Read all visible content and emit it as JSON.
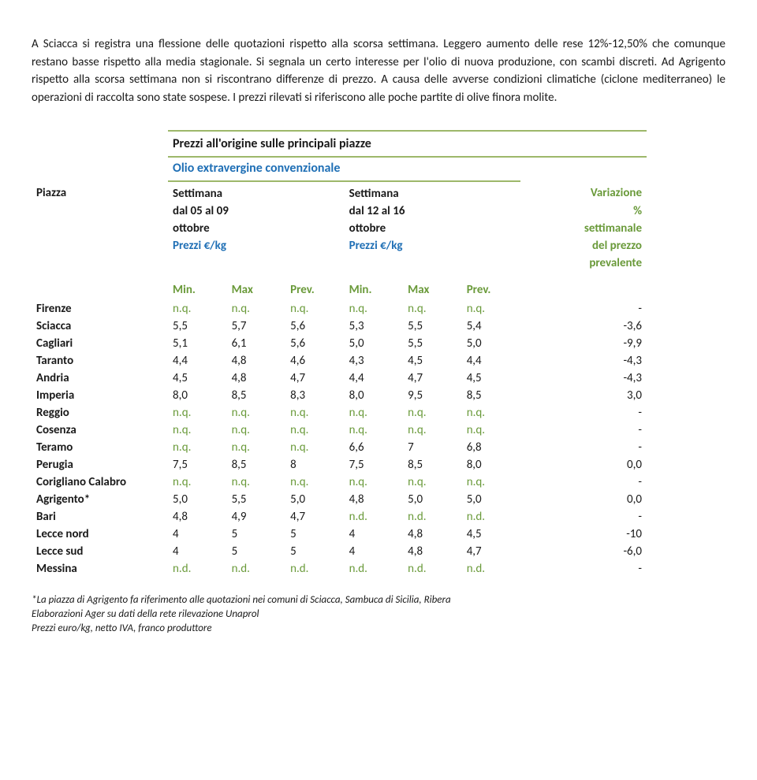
{
  "colors": {
    "text": "#1a1a1a",
    "blue": "#1f6fb5",
    "green": "#6a9a3a",
    "border": "#9db86a"
  },
  "intro": "A Sciacca si registra una flessione delle quotazioni rispetto alla scorsa settimana. Leggero aumento delle rese 12%-12,50% che comunque restano basse rispetto alla media stagionale. Si segnala un certo interesse per l'olio di nuova produzione, con scambi discreti. Ad Agrigento rispetto alla scorsa settimana non si riscontrano differenze di prezzo. A causa delle avverse condizioni climatiche (ciclone mediterraneo) le operazioni di raccolta sono state sospese. I prezzi rilevati si riferiscono alle poche partite di olive finora molite.",
  "table": {
    "title": "Prezzi all'origine sulle principali piazze",
    "subtitle": "Olio extravergine convenzionale",
    "col_piazza": "Piazza",
    "week1_l1": "Settimana",
    "week1_l2": "dal 05 al 09",
    "week1_l3": "ottobre",
    "week1_l4": "Prezzi €/kg",
    "week2_l1": "Settimana",
    "week2_l2": "dal 12 al 16",
    "week2_l3": "ottobre",
    "week2_l4": "Prezzi €/kg",
    "var_l1": "Variazione",
    "var_l2": "%",
    "var_l3": "settimanale",
    "var_l4": "del prezzo",
    "var_l5": "prevalente",
    "mm": {
      "min": "Min.",
      "max": "Max",
      "prev": "Prev."
    },
    "rows": [
      {
        "p": "Firenze",
        "a": [
          "n.q.",
          "n.q.",
          "n.q.",
          "n.q.",
          "n.q.",
          "n.q."
        ],
        "v": "-"
      },
      {
        "p": "Sciacca",
        "a": [
          "5,5",
          "5,7",
          "5,6",
          "5,3",
          "5,5",
          "5,4"
        ],
        "v": "-3,6"
      },
      {
        "p": "Cagliari",
        "a": [
          "5,1",
          "6,1",
          "5,6",
          "5,0",
          "5,5",
          "5,0"
        ],
        "v": "-9,9"
      },
      {
        "p": "Taranto",
        "a": [
          "4,4",
          "4,8",
          "4,6",
          "4,3",
          "4,5",
          "4,4"
        ],
        "v": "-4,3"
      },
      {
        "p": "Andria",
        "a": [
          "4,5",
          "4,8",
          "4,7",
          "4,4",
          "4,7",
          "4,5"
        ],
        "v": "-4,3"
      },
      {
        "p": "Imperia",
        "a": [
          "8,0",
          "8,5",
          "8,3",
          "8,0",
          "9,5",
          "8,5"
        ],
        "v": "3,0"
      },
      {
        "p": "Reggio",
        "a": [
          "n.q.",
          "n.q.",
          "n.q.",
          "n.q.",
          "n.q.",
          "n.q."
        ],
        "v": "-"
      },
      {
        "p": "Cosenza",
        "a": [
          "n.q.",
          "n.q.",
          "n.q.",
          "n.q.",
          "n.q.",
          "n.q."
        ],
        "v": "-"
      },
      {
        "p": "Teramo",
        "a": [
          "n.q.",
          "n.q.",
          "n.q.",
          "6,6",
          "7",
          "6,8"
        ],
        "v": "-"
      },
      {
        "p": "Perugia",
        "a": [
          "7,5",
          "8,5",
          "8",
          "7,5",
          "8,5",
          "8,0"
        ],
        "v": "0,0"
      },
      {
        "p": "Corigliano Calabro",
        "a": [
          "n.q.",
          "n.q.",
          "n.q.",
          "n.q.",
          "n.q.",
          "n.q."
        ],
        "v": "-"
      },
      {
        "p": "Agrigento*",
        "a": [
          "5,0",
          "5,5",
          "5,0",
          "4,8",
          "5,0",
          "5,0"
        ],
        "v": "0,0"
      },
      {
        "p": "Bari",
        "a": [
          "4,8",
          "4,9",
          "4,7",
          "n.d.",
          "n.d.",
          "n.d."
        ],
        "v": "-"
      },
      {
        "p": "Lecce nord",
        "a": [
          "4",
          "5",
          "5",
          "4",
          "4,8",
          "4,5"
        ],
        "v": "-10"
      },
      {
        "p": "Lecce sud",
        "a": [
          "4",
          "5",
          "5",
          "4",
          "4,8",
          "4,7"
        ],
        "v": "-6,0"
      },
      {
        "p": "Messina",
        "a": [
          "n.d.",
          "n.d.",
          "n.d.",
          "n.d.",
          "n.d.",
          "n.d."
        ],
        "v": "-"
      }
    ]
  },
  "footnotes": {
    "f1": "*La piazza di Agrigento fa riferimento alle quotazioni nei comuni di Sciacca, Sambuca di Sicilia, Ribera",
    "f2": "Elaborazioni Ager su dati della rete rilevazione Unaprol",
    "f3": "Prezzi euro/kg, netto IVA, franco produttore"
  }
}
